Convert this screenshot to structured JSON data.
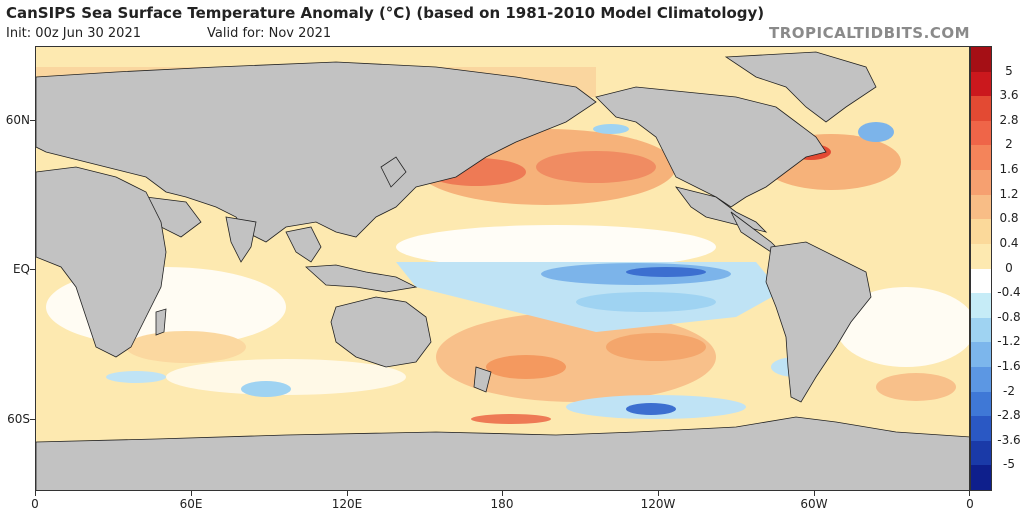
{
  "header": {
    "title": "CanSIPS Sea Surface Temperature Anomaly (°C) (based on 1981-2010 Model Climatology)",
    "init": "Init: 00z Jun 30 2021",
    "valid": "Valid for: Nov 2021",
    "brand": "TROPICALTIDBITS.COM"
  },
  "axes": {
    "y_labels": [
      "60N",
      "EQ",
      "60S"
    ],
    "x_labels": [
      "0",
      "60E",
      "120E",
      "180",
      "120W",
      "60W",
      "0"
    ]
  },
  "colorbar": {
    "labels": [
      "5",
      "3.6",
      "2.8",
      "2",
      "1.6",
      "1.2",
      "0.8",
      "0.4",
      "0",
      "-0.4",
      "-0.8",
      "-1.2",
      "-1.6",
      "-2",
      "-2.8",
      "-3.6",
      "-5"
    ],
    "colors": [
      "#a50f15",
      "#cb181d",
      "#e34a33",
      "#ef6548",
      "#f4845a",
      "#f6a070",
      "#f8bd86",
      "#fbd99a",
      "#fde9b0",
      "#ffffff",
      "#c6ecf7",
      "#9fd3f2",
      "#7cb6ec",
      "#5c97e3",
      "#3f78d6",
      "#2a58c4",
      "#1a3aa8",
      "#0e1f8c"
    ]
  },
  "colors": {
    "land": "#c2c2c2",
    "ocean_neutral": "#ffffff",
    "warm_light": "#fbe3a8",
    "warm_mid": "#f6b27a",
    "warm_strong": "#ee7a55",
    "cool_light": "#bfe3f5",
    "cool_mid": "#7cb4ea",
    "cool_strong": "#3c6fd0"
  }
}
